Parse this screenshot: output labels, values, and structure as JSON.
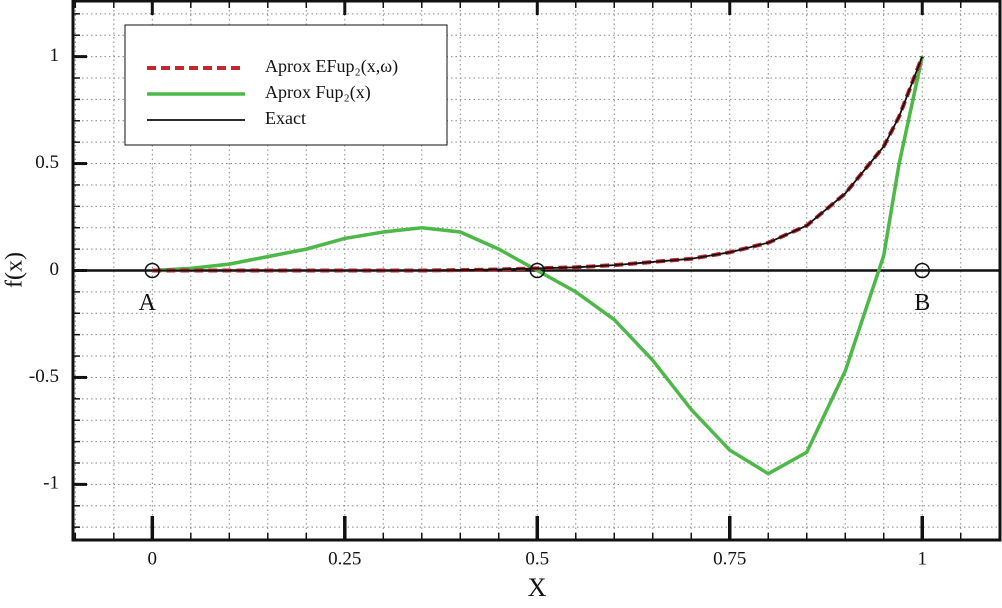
{
  "chart_data": {
    "type": "line",
    "x_label": "X",
    "y_label": "f(x)",
    "x": [
      0,
      0.05,
      0.1,
      0.15,
      0.2,
      0.25,
      0.3,
      0.35,
      0.4,
      0.45,
      0.5,
      0.55,
      0.6,
      0.65,
      0.7,
      0.75,
      0.8,
      0.85,
      0.9,
      0.95,
      0.97,
      1
    ],
    "series": [
      {
        "name": "Aprox EFup₂(x,ω)",
        "color": "#c1272d",
        "dashed": true,
        "values": [
          0,
          0,
          0,
          0,
          0,
          0,
          0,
          0,
          0.002,
          0.005,
          0.01,
          0.015,
          0.025,
          0.04,
          0.055,
          0.085,
          0.13,
          0.21,
          0.36,
          0.58,
          0.72,
          1
        ]
      },
      {
        "name": "Aprox Fup₂(x)",
        "color": "#4cb847",
        "dashed": false,
        "values": [
          0,
          0.01,
          0.03,
          0.065,
          0.1,
          0.15,
          0.18,
          0.2,
          0.18,
          0.1,
          0,
          -0.1,
          -0.23,
          -0.42,
          -0.65,
          -0.84,
          -0.95,
          -0.85,
          -0.47,
          0.07,
          0.5,
          1
        ]
      },
      {
        "name": "Exact",
        "color": "#111111",
        "dashed": false,
        "values": [
          0,
          0,
          0,
          0,
          0,
          0,
          0,
          0,
          0.002,
          0.005,
          0.01,
          0.015,
          0.025,
          0.04,
          0.055,
          0.085,
          0.13,
          0.21,
          0.36,
          0.58,
          0.72,
          1
        ]
      }
    ],
    "points": [
      {
        "label": "A",
        "x": 0,
        "y": 0
      },
      {
        "label": null,
        "x": 0.5,
        "y": 0
      },
      {
        "label": "B",
        "x": 1,
        "y": 0
      }
    ],
    "xlim": [
      -0.103,
      1.101
    ],
    "ylim": [
      -1.26,
      1.26
    ],
    "xticks": [
      0,
      0.25,
      0.5,
      0.75,
      1
    ],
    "yticks": [
      -1,
      -0.5,
      0,
      0.5,
      1
    ],
    "minor_divisions": 5,
    "grid": true,
    "legend": "upper left"
  }
}
